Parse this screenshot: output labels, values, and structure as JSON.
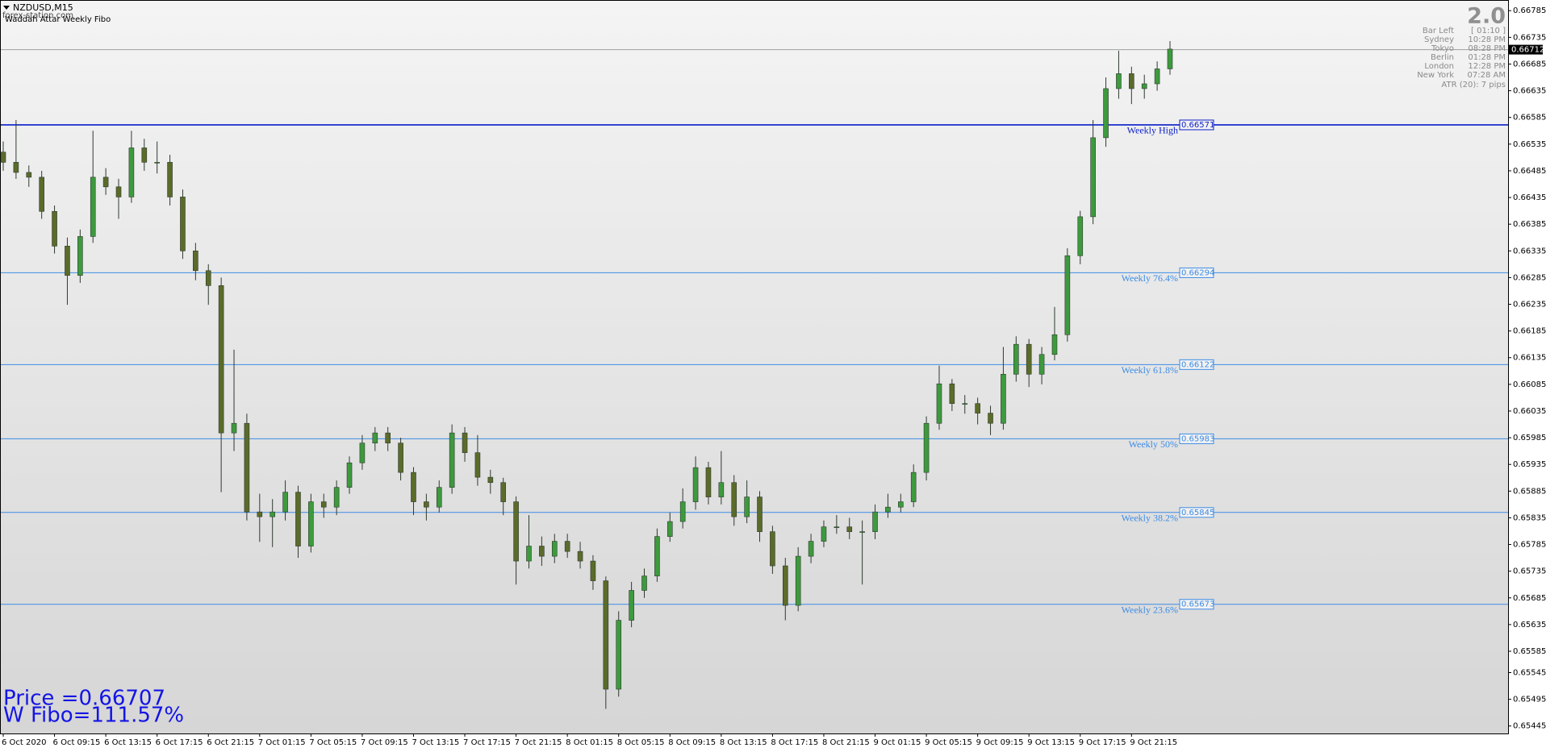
{
  "header": {
    "symbol": "NZDUSD,M15",
    "indicator": "Waddah Attar Weekly Fibo",
    "watermark": "forex-station.com"
  },
  "chart_data": {
    "type": "candlestick",
    "categories": [
      "6 Oct 2020",
      null,
      null,
      null,
      "6 Oct 09:15",
      null,
      null,
      null,
      "6 Oct 13:15",
      null,
      null,
      null,
      "6 Oct 17:15",
      null,
      null,
      null,
      "6 Oct 21:15",
      null,
      null,
      null,
      "7 Oct 01:15",
      null,
      null,
      null,
      "7 Oct 05:15",
      null,
      null,
      null,
      "7 Oct 09:15",
      null,
      null,
      null,
      "7 Oct 13:15",
      null,
      null,
      null,
      "7 Oct 17:15",
      null,
      null,
      null,
      "7 Oct 21:15",
      null,
      null,
      null,
      "8 Oct 01:15",
      null,
      null,
      null,
      "8 Oct 05:15",
      null,
      null,
      null,
      "8 Oct 09:15",
      null,
      null,
      null,
      "8 Oct 13:15",
      null,
      null,
      null,
      "8 Oct 17:15",
      null,
      null,
      null,
      "8 Oct 21:15",
      null,
      null,
      null,
      "9 Oct 01:15",
      null,
      null,
      null,
      "9 Oct 05:15",
      null,
      null,
      null,
      "9 Oct 09:15",
      null,
      null,
      null,
      "9 Oct 13:15",
      null,
      null,
      null,
      "9 Oct 17:15",
      null,
      null,
      null,
      "9 Oct 21:15",
      null,
      null,
      null
    ],
    "open": [
      0.6652,
      0.66501,
      0.66482,
      0.66473,
      0.66409,
      0.66344,
      0.66289,
      0.66362,
      0.66473,
      0.66455,
      0.66436,
      0.66528,
      0.66501,
      0.66501,
      0.66436,
      0.66335,
      0.66298,
      0.6627,
      0.65994,
      0.66012,
      0.65846,
      0.65837,
      0.65846,
      0.65883,
      0.65782,
      0.65865,
      0.65855,
      0.65892,
      0.65938,
      0.65975,
      0.65994,
      0.65975,
      0.6592,
      0.65865,
      0.65855,
      0.65892,
      0.65994,
      0.65957,
      0.65911,
      0.65901,
      0.65865,
      0.65754,
      0.65782,
      0.65763,
      0.65791,
      0.65772,
      0.65754,
      0.65717,
      0.65514,
      0.65643,
      0.65699,
      0.65726,
      0.658,
      0.65828,
      0.65865,
      0.65929,
      0.65874,
      0.65901,
      0.65837,
      0.65874,
      0.65809,
      0.65745,
      0.65671,
      0.65763,
      0.65791,
      0.65818,
      0.65818,
      0.65809,
      0.65809,
      0.65846,
      0.65855,
      0.65865,
      0.6592,
      0.66012,
      0.66086,
      0.66049,
      0.66049,
      0.66031,
      0.66012,
      0.66104,
      0.6616,
      0.66104,
      0.66141,
      0.66178,
      0.66326,
      0.66399,
      0.66547,
      0.66639,
      0.66667,
      0.66639,
      0.66648,
      0.66676
    ],
    "high": [
      0.6654,
      0.6658,
      0.66495,
      0.66485,
      0.6642,
      0.6636,
      0.66375,
      0.6656,
      0.6649,
      0.6647,
      0.6656,
      0.66545,
      0.6654,
      0.66515,
      0.6645,
      0.6635,
      0.6631,
      0.66285,
      0.6615,
      0.6603,
      0.6588,
      0.6587,
      0.65905,
      0.65895,
      0.6588,
      0.6588,
      0.65905,
      0.6595,
      0.6599,
      0.66005,
      0.66005,
      0.65985,
      0.6593,
      0.6588,
      0.65905,
      0.6601,
      0.66005,
      0.6599,
      0.65925,
      0.6591,
      0.65875,
      0.6584,
      0.658,
      0.65805,
      0.65805,
      0.6579,
      0.65765,
      0.65725,
      0.6566,
      0.65715,
      0.6574,
      0.65815,
      0.65845,
      0.6589,
      0.6595,
      0.6594,
      0.6596,
      0.65915,
      0.65905,
      0.65885,
      0.6582,
      0.6576,
      0.6578,
      0.65805,
      0.6583,
      0.6584,
      0.65835,
      0.6583,
      0.6586,
      0.6588,
      0.6588,
      0.65935,
      0.66025,
      0.6612,
      0.66095,
      0.66065,
      0.6606,
      0.66045,
      0.66155,
      0.66175,
      0.6617,
      0.66155,
      0.6623,
      0.6634,
      0.6641,
      0.6658,
      0.6666,
      0.6671,
      0.6668,
      0.66665,
      0.6669,
      0.66728
    ],
    "low": [
      0.66485,
      0.6647,
      0.66455,
      0.66395,
      0.6633,
      0.66234,
      0.66275,
      0.6635,
      0.6644,
      0.66395,
      0.66425,
      0.66485,
      0.6648,
      0.6642,
      0.6632,
      0.6628,
      0.66234,
      0.65883,
      0.6596,
      0.6583,
      0.6579,
      0.6578,
      0.6583,
      0.6576,
      0.6577,
      0.65835,
      0.6584,
      0.6588,
      0.65925,
      0.6596,
      0.6596,
      0.65905,
      0.6584,
      0.6583,
      0.65845,
      0.6588,
      0.6594,
      0.65895,
      0.6588,
      0.6584,
      0.6571,
      0.6574,
      0.65745,
      0.6575,
      0.6576,
      0.6574,
      0.657,
      0.65477,
      0.655,
      0.6563,
      0.65685,
      0.65715,
      0.6579,
      0.65815,
      0.6585,
      0.6586,
      0.6586,
      0.6582,
      0.65825,
      0.6579,
      0.6573,
      0.65643,
      0.6566,
      0.6575,
      0.6578,
      0.65805,
      0.65795,
      0.6571,
      0.65795,
      0.65835,
      0.65845,
      0.65855,
      0.65905,
      0.66,
      0.66035,
      0.6603,
      0.6601,
      0.6599,
      0.66,
      0.6609,
      0.6608,
      0.66085,
      0.6613,
      0.66165,
      0.6631,
      0.66385,
      0.6653,
      0.6662,
      0.6661,
      0.6662,
      0.66635,
      0.66665
    ],
    "close": [
      0.66501,
      0.66482,
      0.66473,
      0.66409,
      0.66344,
      0.66289,
      0.66362,
      0.66473,
      0.66455,
      0.66436,
      0.66528,
      0.66501,
      0.66501,
      0.66436,
      0.66335,
      0.66298,
      0.6627,
      0.65994,
      0.66012,
      0.65846,
      0.65837,
      0.65846,
      0.65883,
      0.65782,
      0.65865,
      0.65855,
      0.65892,
      0.65938,
      0.65975,
      0.65994,
      0.65975,
      0.6592,
      0.65865,
      0.65855,
      0.65892,
      0.65994,
      0.65957,
      0.65911,
      0.65901,
      0.65865,
      0.65754,
      0.65782,
      0.65763,
      0.65791,
      0.65772,
      0.65754,
      0.65717,
      0.65514,
      0.65643,
      0.65699,
      0.65726,
      0.658,
      0.65828,
      0.65865,
      0.65929,
      0.65874,
      0.65901,
      0.65837,
      0.65874,
      0.65809,
      0.65745,
      0.65671,
      0.65763,
      0.65791,
      0.65818,
      0.65818,
      0.65809,
      0.65809,
      0.65846,
      0.65855,
      0.65865,
      0.6592,
      0.66012,
      0.66086,
      0.66049,
      0.66049,
      0.66031,
      0.66012,
      0.66104,
      0.6616,
      0.66104,
      0.66141,
      0.66178,
      0.66326,
      0.66399,
      0.66547,
      0.66639,
      0.66667,
      0.66639,
      0.66648,
      0.66676,
      0.66713
    ],
    "up_color": "#3d9a3d",
    "down_color": "#5b6b2a",
    "wick_color": "#2f3a2f",
    "ylim": [
      0.65431,
      0.66805
    ],
    "yticks": [
      0.66785,
      0.66735,
      0.66685,
      0.66635,
      0.66585,
      0.66535,
      0.66485,
      0.66435,
      0.66385,
      0.66335,
      0.66285,
      0.66235,
      0.66185,
      0.66135,
      0.66085,
      0.66035,
      0.65985,
      0.65935,
      0.65885,
      0.65835,
      0.65785,
      0.65735,
      0.65685,
      0.65635,
      0.65585,
      0.65545,
      0.65495,
      0.65445
    ],
    "current_price": 0.66712,
    "levels": [
      {
        "name": "Weekly High",
        "value": 0.66571,
        "color": "#0a1ec8"
      },
      {
        "name": "Weekly 76.4%",
        "value": 0.66294,
        "color": "#3c8ce6"
      },
      {
        "name": "Weekly 61.8%",
        "value": 0.66122,
        "color": "#3c8ce6"
      },
      {
        "name": "Weekly 50%",
        "value": 0.65983,
        "color": "#3c8ce6"
      },
      {
        "name": "Weekly 38.2%",
        "value": 0.65845,
        "color": "#3c8ce6"
      },
      {
        "name": "Weekly 23.6%",
        "value": 0.65673,
        "color": "#3c8ce6"
      }
    ]
  },
  "info_panel": {
    "version": "2.0",
    "rows": [
      [
        "Bar Left",
        "[ 01:10 ]"
      ],
      [
        "Sydney",
        "10:28 PM"
      ],
      [
        "Tokyo",
        "08:28 PM"
      ],
      [
        "Berlin",
        "01:28 PM"
      ],
      [
        "London",
        "12:28 PM"
      ],
      [
        "New York",
        "07:28 AM"
      ]
    ],
    "atr": "ATR (20): 7 pips"
  },
  "footer": {
    "price": "Price =0.66707",
    "fibo": "W Fibo=111.57%"
  }
}
